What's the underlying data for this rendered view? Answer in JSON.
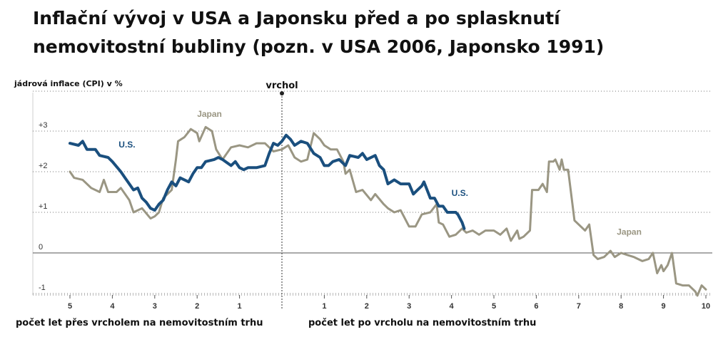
{
  "title": "Inflační vývoj v USA a Japonsku před a po splasknutí nemovitostní bubliny (pozn. v USA 2006, Japonsko 1991)",
  "chart_data": {
    "type": "line",
    "ylabel": "jádrová inflace (CPI) v %",
    "peak_label": "vrchol",
    "xlabel_left": "počet let přes vrcholem na nemovitostním trhu",
    "xlabel_right": "počet let po vrcholu na nemovitostním trhu",
    "x_range": [
      -5,
      10
    ],
    "ylim": [
      -1.2,
      4
    ],
    "y_ticks": [
      {
        "value": 3,
        "label": "+3"
      },
      {
        "value": 2,
        "label": "+2"
      },
      {
        "value": 1,
        "label": "+1"
      },
      {
        "value": 0,
        "label": "0"
      },
      {
        "value": -1,
        "label": "-1"
      }
    ],
    "x_ticks": [
      {
        "value": -5,
        "label": "5"
      },
      {
        "value": -4,
        "label": "4"
      },
      {
        "value": -3,
        "label": "3"
      },
      {
        "value": -2,
        "label": "2"
      },
      {
        "value": -1,
        "label": "1"
      },
      {
        "value": 1,
        "label": "1"
      },
      {
        "value": 2,
        "label": "2"
      },
      {
        "value": 3,
        "label": "3"
      },
      {
        "value": 4,
        "label": "4"
      },
      {
        "value": 5,
        "label": "5"
      },
      {
        "value": 6,
        "label": "6"
      },
      {
        "value": 7,
        "label": "7"
      },
      {
        "value": 8,
        "label": "8"
      },
      {
        "value": 9,
        "label": "9"
      },
      {
        "value": 10,
        "label": "10"
      }
    ],
    "grid": "dotted horizontal",
    "series": [
      {
        "name": "U.S.",
        "color": "#1a4f7e",
        "points": [
          [
            -5,
            2.7
          ],
          [
            -4.8,
            2.65
          ],
          [
            -4.7,
            2.75
          ],
          [
            -4.6,
            2.55
          ],
          [
            -4.4,
            2.55
          ],
          [
            -4.3,
            2.4
          ],
          [
            -4.1,
            2.35
          ],
          [
            -4.0,
            2.25
          ],
          [
            -3.8,
            2.0
          ],
          [
            -3.7,
            1.85
          ],
          [
            -3.5,
            1.55
          ],
          [
            -3.4,
            1.6
          ],
          [
            -3.3,
            1.35
          ],
          [
            -3.2,
            1.25
          ],
          [
            -3.1,
            1.1
          ],
          [
            -3.0,
            1.05
          ],
          [
            -2.9,
            1.2
          ],
          [
            -2.8,
            1.3
          ],
          [
            -2.7,
            1.55
          ],
          [
            -2.6,
            1.75
          ],
          [
            -2.5,
            1.65
          ],
          [
            -2.4,
            1.85
          ],
          [
            -2.2,
            1.75
          ],
          [
            -2.1,
            1.95
          ],
          [
            -2.0,
            2.1
          ],
          [
            -1.9,
            2.1
          ],
          [
            -1.8,
            2.25
          ],
          [
            -1.6,
            2.3
          ],
          [
            -1.5,
            2.35
          ],
          [
            -1.4,
            2.3
          ],
          [
            -1.2,
            2.15
          ],
          [
            -1.1,
            2.25
          ],
          [
            -1.0,
            2.1
          ],
          [
            -0.9,
            2.05
          ],
          [
            -0.8,
            2.1
          ],
          [
            -0.6,
            2.1
          ],
          [
            -0.4,
            2.15
          ],
          [
            -0.3,
            2.45
          ],
          [
            -0.2,
            2.7
          ],
          [
            -0.1,
            2.65
          ],
          [
            0.0,
            2.75
          ],
          [
            0.1,
            2.9
          ],
          [
            0.2,
            2.8
          ],
          [
            0.3,
            2.65
          ],
          [
            0.45,
            2.75
          ],
          [
            0.6,
            2.7
          ],
          [
            0.75,
            2.45
          ],
          [
            0.9,
            2.35
          ],
          [
            1.0,
            2.15
          ],
          [
            1.1,
            2.15
          ],
          [
            1.2,
            2.25
          ],
          [
            1.35,
            2.3
          ],
          [
            1.5,
            2.15
          ],
          [
            1.6,
            2.4
          ],
          [
            1.8,
            2.35
          ],
          [
            1.9,
            2.45
          ],
          [
            2.0,
            2.3
          ],
          [
            2.2,
            2.4
          ],
          [
            2.3,
            2.15
          ],
          [
            2.4,
            2.05
          ],
          [
            2.5,
            1.7
          ],
          [
            2.65,
            1.8
          ],
          [
            2.8,
            1.7
          ],
          [
            3.0,
            1.7
          ],
          [
            3.1,
            1.45
          ],
          [
            3.2,
            1.55
          ],
          [
            3.3,
            1.65
          ],
          [
            3.35,
            1.75
          ],
          [
            3.5,
            1.35
          ],
          [
            3.6,
            1.35
          ],
          [
            3.7,
            1.15
          ],
          [
            3.8,
            1.15
          ],
          [
            3.9,
            1.0
          ],
          [
            4.0,
            1.0
          ],
          [
            4.1,
            1.0
          ],
          [
            4.15,
            0.95
          ],
          [
            4.25,
            0.75
          ],
          [
            4.3,
            0.6
          ]
        ]
      },
      {
        "name": "Japan",
        "color": "#9a9683",
        "points": [
          [
            -5,
            2.0
          ],
          [
            -4.9,
            1.85
          ],
          [
            -4.7,
            1.8
          ],
          [
            -4.5,
            1.6
          ],
          [
            -4.3,
            1.5
          ],
          [
            -4.2,
            1.8
          ],
          [
            -4.1,
            1.5
          ],
          [
            -3.9,
            1.5
          ],
          [
            -3.8,
            1.6
          ],
          [
            -3.6,
            1.3
          ],
          [
            -3.5,
            1.0
          ],
          [
            -3.3,
            1.1
          ],
          [
            -3.1,
            0.85
          ],
          [
            -3.0,
            0.9
          ],
          [
            -2.9,
            1.0
          ],
          [
            -2.8,
            1.35
          ],
          [
            -2.7,
            1.45
          ],
          [
            -2.6,
            1.55
          ],
          [
            -2.5,
            2.3
          ],
          [
            -2.45,
            2.75
          ],
          [
            -2.3,
            2.85
          ],
          [
            -2.15,
            3.05
          ],
          [
            -2.0,
            2.95
          ],
          [
            -1.95,
            2.75
          ],
          [
            -1.8,
            3.1
          ],
          [
            -1.65,
            3.0
          ],
          [
            -1.55,
            2.55
          ],
          [
            -1.4,
            2.3
          ],
          [
            -1.2,
            2.6
          ],
          [
            -1.0,
            2.65
          ],
          [
            -0.8,
            2.6
          ],
          [
            -0.6,
            2.7
          ],
          [
            -0.4,
            2.7
          ],
          [
            -0.2,
            2.5
          ],
          [
            0.0,
            2.55
          ],
          [
            0.15,
            2.65
          ],
          [
            0.3,
            2.35
          ],
          [
            0.45,
            2.25
          ],
          [
            0.6,
            2.3
          ],
          [
            0.75,
            2.95
          ],
          [
            0.9,
            2.8
          ],
          [
            1.0,
            2.65
          ],
          [
            1.15,
            2.55
          ],
          [
            1.3,
            2.55
          ],
          [
            1.45,
            2.25
          ],
          [
            1.5,
            1.95
          ],
          [
            1.6,
            2.05
          ],
          [
            1.75,
            1.5
          ],
          [
            1.9,
            1.55
          ],
          [
            2.1,
            1.3
          ],
          [
            2.2,
            1.45
          ],
          [
            2.4,
            1.2
          ],
          [
            2.5,
            1.1
          ],
          [
            2.65,
            1.0
          ],
          [
            2.8,
            1.05
          ],
          [
            3.0,
            0.65
          ],
          [
            3.15,
            0.65
          ],
          [
            3.3,
            0.95
          ],
          [
            3.5,
            1.0
          ],
          [
            3.65,
            1.2
          ],
          [
            3.7,
            0.75
          ],
          [
            3.8,
            0.7
          ],
          [
            3.95,
            0.4
          ],
          [
            4.1,
            0.45
          ],
          [
            4.25,
            0.6
          ],
          [
            4.35,
            0.5
          ],
          [
            4.5,
            0.55
          ],
          [
            4.65,
            0.45
          ],
          [
            4.8,
            0.55
          ],
          [
            5.0,
            0.55
          ],
          [
            5.15,
            0.45
          ],
          [
            5.3,
            0.6
          ],
          [
            5.4,
            0.3
          ],
          [
            5.55,
            0.55
          ],
          [
            5.6,
            0.35
          ],
          [
            5.7,
            0.4
          ],
          [
            5.85,
            0.55
          ],
          [
            5.9,
            1.55
          ],
          [
            6.05,
            1.55
          ],
          [
            6.15,
            1.7
          ],
          [
            6.25,
            1.5
          ],
          [
            6.3,
            2.25
          ],
          [
            6.4,
            2.25
          ],
          [
            6.45,
            2.3
          ],
          [
            6.55,
            2.05
          ],
          [
            6.6,
            2.3
          ],
          [
            6.65,
            2.05
          ],
          [
            6.75,
            2.05
          ],
          [
            6.9,
            0.8
          ],
          [
            7.0,
            0.7
          ],
          [
            7.15,
            0.55
          ],
          [
            7.25,
            0.7
          ],
          [
            7.35,
            -0.05
          ],
          [
            7.45,
            -0.15
          ],
          [
            7.6,
            -0.1
          ],
          [
            7.75,
            0.05
          ],
          [
            7.85,
            -0.1
          ],
          [
            8.0,
            0.0
          ],
          [
            8.15,
            -0.05
          ],
          [
            8.3,
            -0.1
          ],
          [
            8.5,
            -0.2
          ],
          [
            8.65,
            -0.15
          ],
          [
            8.75,
            0.0
          ],
          [
            8.85,
            -0.5
          ],
          [
            8.95,
            -0.3
          ],
          [
            9.0,
            -0.45
          ],
          [
            9.1,
            -0.3
          ],
          [
            9.2,
            0.0
          ],
          [
            9.3,
            -0.75
          ],
          [
            9.45,
            -0.8
          ],
          [
            9.6,
            -0.8
          ],
          [
            9.75,
            -0.95
          ],
          [
            9.8,
            -1.05
          ],
          [
            9.9,
            -0.8
          ],
          [
            10.0,
            -0.9
          ]
        ]
      }
    ],
    "annotations": [
      {
        "series": "Japan",
        "label": "Japan",
        "x": -2.0,
        "y": 3.35
      },
      {
        "series": "U.S.",
        "label": "U.S.",
        "x": -3.85,
        "y": 2.6
      },
      {
        "series": "U.S.",
        "label": "U.S.",
        "x": 4.0,
        "y": 1.4
      },
      {
        "series": "Japan",
        "label": "Japan",
        "x": 7.9,
        "y": 0.45
      }
    ]
  }
}
